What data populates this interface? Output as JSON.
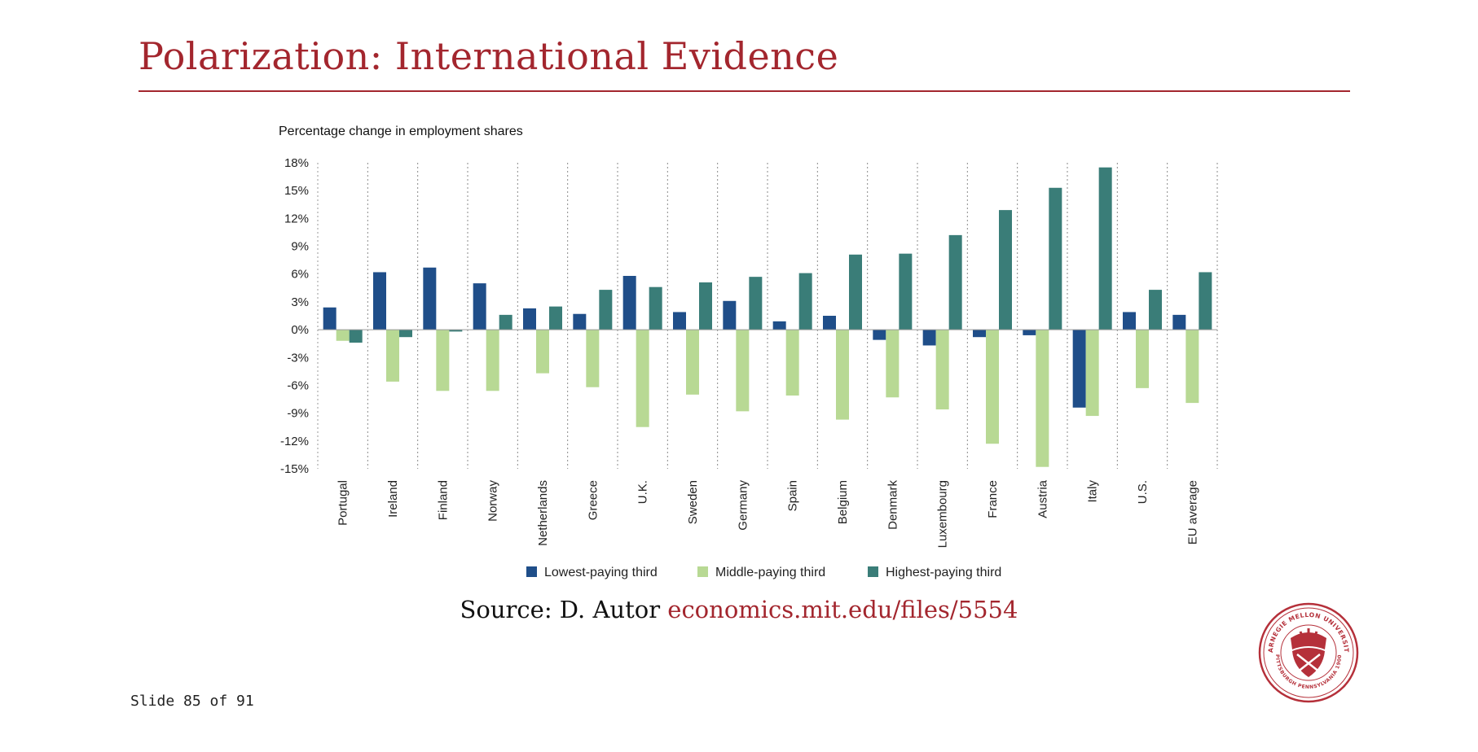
{
  "slide": {
    "title": "Polarization: International Evidence",
    "source_prefix": "Source: D. Autor",
    "source_link": "economics.mit.edu/files/5554",
    "slide_number": "Slide 85 of 91",
    "accent_color": "#a3262e"
  },
  "seal": {
    "text_top": "CARNEGIE MELLON UNIVERSITY",
    "text_bottom": "PITTSBURGH PENNSYLVANIA 1900",
    "icon": "thistle-crest-icon"
  },
  "chart_data": {
    "type": "bar",
    "title": "Percentage change in employment shares",
    "xlabel": "",
    "ylabel": "",
    "ylim": [
      -15,
      18
    ],
    "yticks": [
      18,
      15,
      12,
      9,
      6,
      3,
      0,
      -3,
      -6,
      -9,
      -12,
      -15
    ],
    "ytick_labels": [
      "18%",
      "15%",
      "12%",
      "9%",
      "6%",
      "3%",
      "0%",
      "-3%",
      "-6%",
      "-9%",
      "-12%",
      "-15%"
    ],
    "categories": [
      "Portugal",
      "Ireland",
      "Finland",
      "Norway",
      "Netherlands",
      "Greece",
      "U.K.",
      "Sweden",
      "Germany",
      "Spain",
      "Belgium",
      "Denmark",
      "Luxembourg",
      "France",
      "Austria",
      "Italy",
      "U.S.",
      "EU average"
    ],
    "series": [
      {
        "name": "Lowest-paying third",
        "color": "#1f4e89",
        "values": [
          2.4,
          6.2,
          6.7,
          5.0,
          2.3,
          1.7,
          5.8,
          1.9,
          3.1,
          0.9,
          1.5,
          -1.1,
          -1.7,
          -0.8,
          -0.6,
          -8.4,
          1.9,
          1.6
        ]
      },
      {
        "name": "Middle-paying third",
        "color": "#b8d994",
        "values": [
          -1.2,
          -5.6,
          -6.6,
          -6.6,
          -4.7,
          -6.2,
          -10.5,
          -7.0,
          -8.8,
          -7.1,
          -9.7,
          -7.3,
          -8.6,
          -12.3,
          -14.8,
          -9.3,
          -6.3,
          -7.9
        ]
      },
      {
        "name": "Highest-paying third",
        "color": "#3a7d78",
        "values": [
          -1.4,
          -0.8,
          -0.2,
          1.6,
          2.5,
          4.3,
          4.6,
          5.1,
          5.7,
          6.1,
          8.1,
          8.2,
          10.2,
          12.9,
          15.3,
          17.5,
          4.3,
          6.2
        ]
      }
    ],
    "grid": false,
    "separators": "dotted vertical lines between categories",
    "legend": "bottom-center"
  }
}
